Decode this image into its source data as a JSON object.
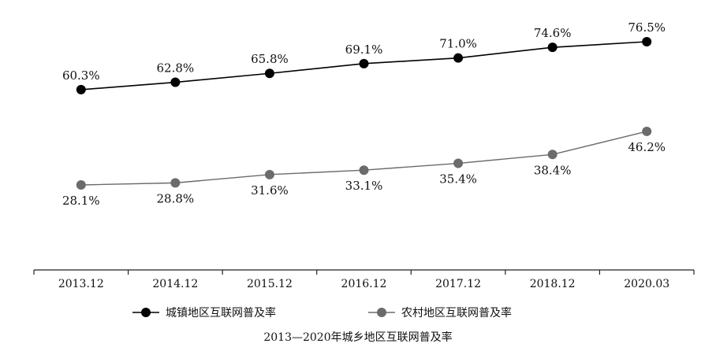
{
  "chart_data": {
    "type": "line",
    "title": "2013—2020年城乡地区互联网普及率",
    "categories": [
      "2013.12",
      "2014.12",
      "2015.12",
      "2016.12",
      "2017.12",
      "2018.12",
      "2020.03"
    ],
    "ylim": [
      0,
      90
    ],
    "grid": false,
    "legend_position": "bottom",
    "series": [
      {
        "name": "城镇地区互联网普及率",
        "color": "#000000",
        "values": [
          60.3,
          62.8,
          65.8,
          69.1,
          71.0,
          74.6,
          76.5
        ],
        "labels": [
          "60.3%",
          "62.8%",
          "65.8%",
          "69.1%",
          "71.0%",
          "74.6%",
          "76.5%"
        ],
        "label_position": "above"
      },
      {
        "name": "农村地区互联网普及率",
        "color": "#6b6b6b",
        "values": [
          28.1,
          28.8,
          31.6,
          33.1,
          35.4,
          38.4,
          46.2
        ],
        "labels": [
          "28.1%",
          "28.8%",
          "31.6%",
          "33.1%",
          "35.4%",
          "38.4%",
          "46.2%"
        ],
        "label_position": "below"
      }
    ]
  }
}
